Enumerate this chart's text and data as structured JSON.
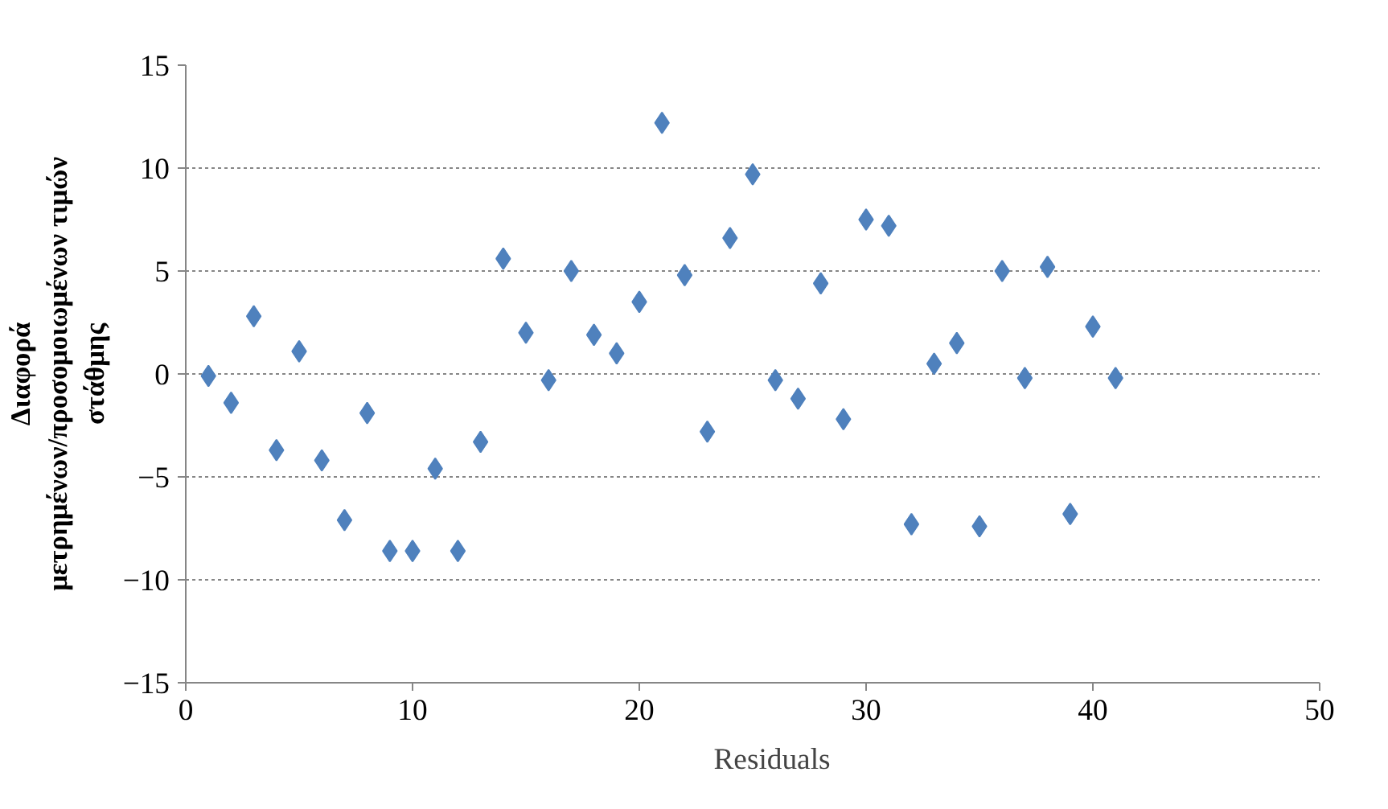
{
  "chart_data": {
    "type": "scatter",
    "ylabel": "Διαφορά μετρημένων/προσομοιωμένων τιμών στάθμης",
    "xlim": [
      0,
      50
    ],
    "xticks": [
      0,
      10,
      20,
      30,
      40,
      50
    ],
    "ylim": [
      -15,
      15
    ],
    "yticks": [
      -15,
      -10,
      -5,
      0,
      5,
      10,
      15
    ],
    "grid": "y",
    "legend": "bottom",
    "marker": "diamond",
    "series": [
      {
        "name": "Residuals",
        "color": "#4f81bd",
        "x": [
          1,
          2,
          3,
          4,
          5,
          6,
          7,
          8,
          9,
          10,
          11,
          12,
          13,
          14,
          15,
          16,
          17,
          18,
          19,
          20,
          21,
          22,
          23,
          24,
          25,
          26,
          27,
          28,
          29,
          30,
          31,
          32,
          33,
          34,
          35,
          36,
          37,
          38,
          39,
          40,
          41
        ],
        "values": [
          -0.1,
          -1.4,
          2.8,
          -3.7,
          1.1,
          -4.2,
          -7.1,
          -1.9,
          -8.6,
          -8.6,
          -4.6,
          -8.6,
          -3.3,
          5.6,
          2.0,
          -0.3,
          5.0,
          1.9,
          1.0,
          3.5,
          12.2,
          4.8,
          -2.8,
          6.6,
          9.7,
          -0.3,
          -1.2,
          4.4,
          -2.2,
          7.5,
          7.2,
          -7.3,
          0.5,
          1.5,
          -7.4,
          5.0,
          -0.2,
          5.2,
          -6.8,
          2.3,
          -0.2
        ]
      }
    ]
  }
}
